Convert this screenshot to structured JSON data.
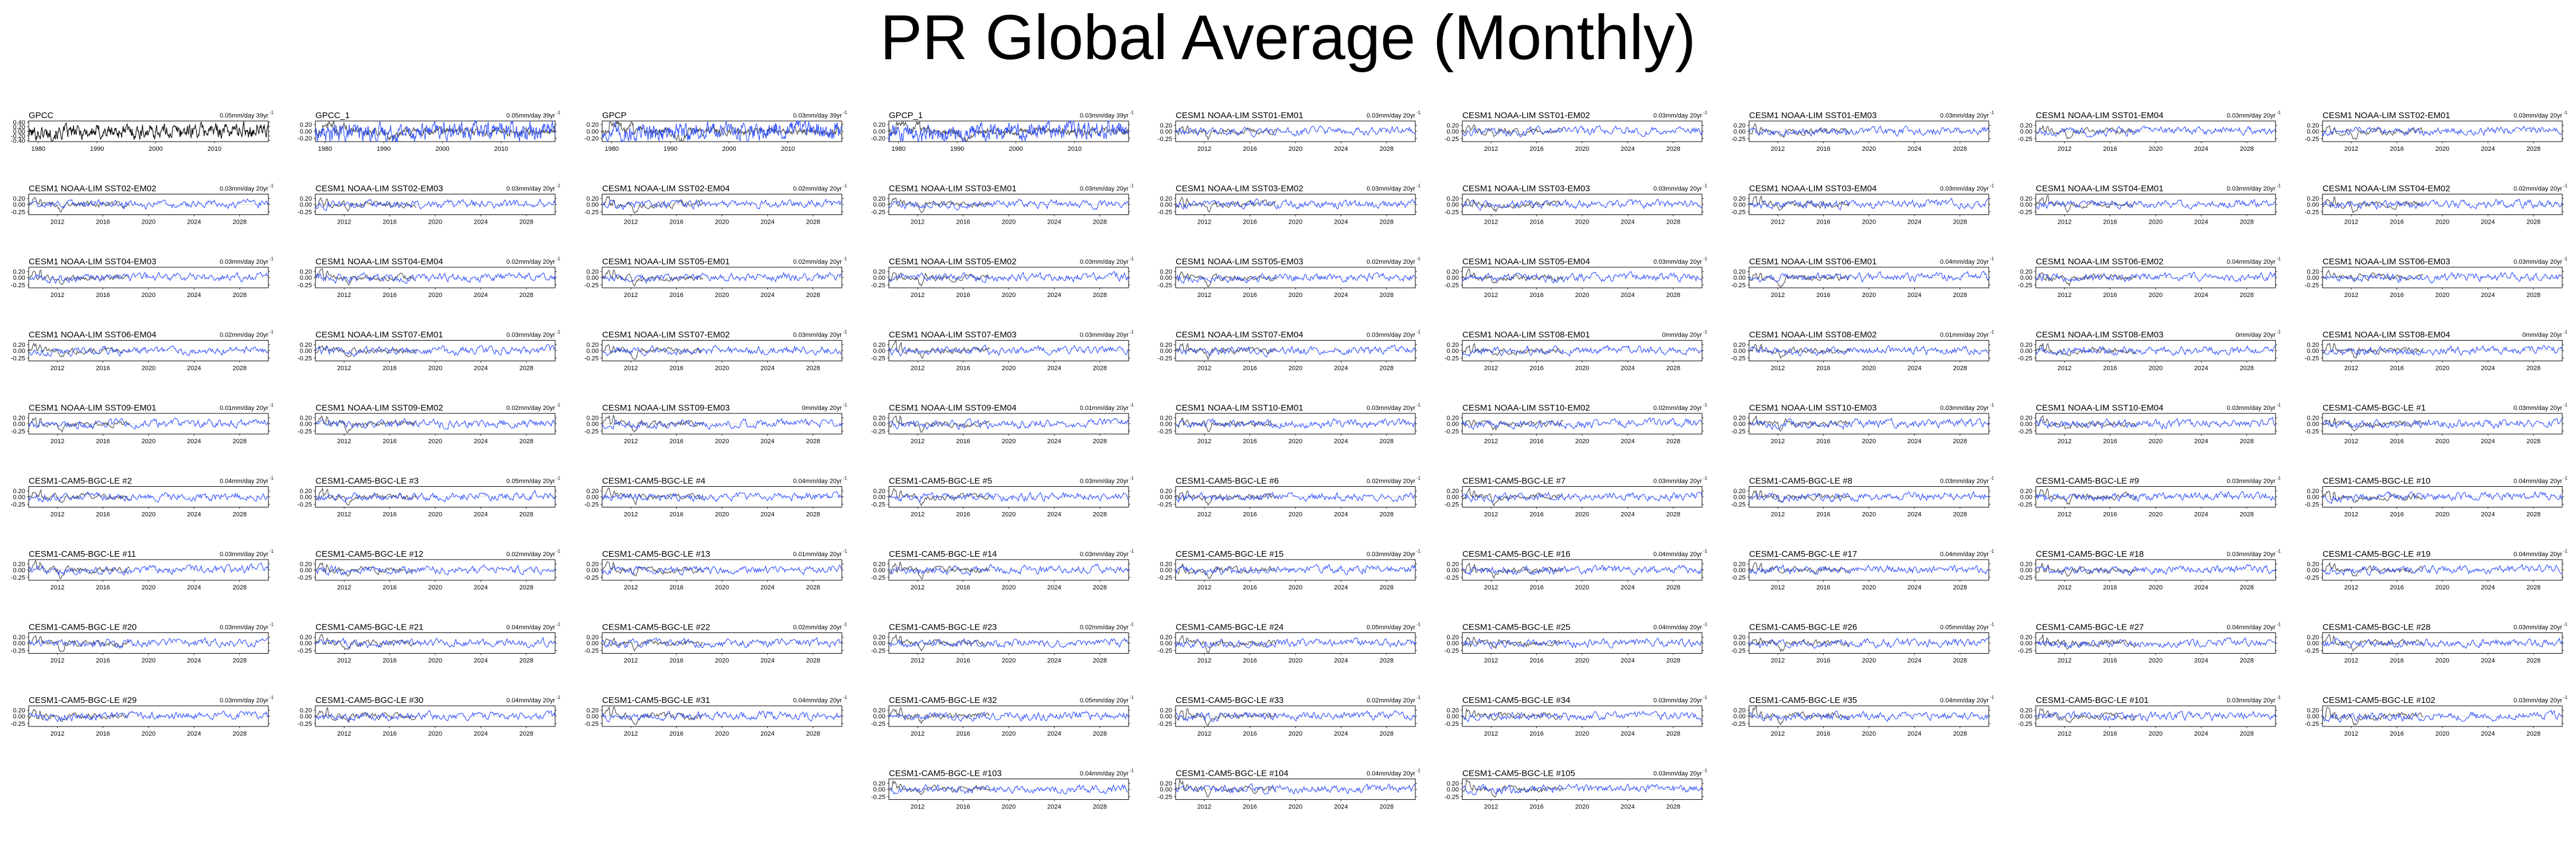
{
  "title": "PR Global Average (Monthly)",
  "chart_data": {
    "type": "line",
    "title": "PR Global Average (Monthly)",
    "colors": {
      "observed": "#000000",
      "model": "#3050ff",
      "truth_overlay": "#333333"
    },
    "obs_panels": [
      {
        "name": "GPCC",
        "trend": "0.05mm/day 39yr",
        "xticks": [
          "1980",
          "1990",
          "2000",
          "2010"
        ],
        "yticks": [
          "0.40",
          "0.20",
          "0.00",
          "-0.20",
          "-0.40"
        ],
        "ylim": [
          -0.45,
          0.45
        ],
        "line_color": "#000000",
        "overlay": false
      },
      {
        "name": "GPCC_1",
        "trend": "0.05mm/day 39yr",
        "xticks": [
          "1980",
          "1990",
          "2000",
          "2010"
        ],
        "yticks": [
          "0.20",
          "0.00",
          "-0.20"
        ],
        "ylim": [
          -0.3,
          0.3
        ],
        "line_color": "#3050ff",
        "overlay": true
      },
      {
        "name": "GPCP",
        "trend": "0.03mm/day 39yr",
        "xticks": [
          "1980",
          "1990",
          "2000",
          "2010"
        ],
        "yticks": [
          "0.20",
          "0.00",
          "-0.20"
        ],
        "ylim": [
          -0.3,
          0.3
        ],
        "line_color": "#3050ff",
        "overlay": true
      },
      {
        "name": "GPCP_1",
        "trend": "0.03mm/day 39yr",
        "xticks": [
          "1980",
          "1990",
          "2000",
          "2010"
        ],
        "yticks": [
          "0.20",
          "0.00",
          "-0.20"
        ],
        "ylim": [
          -0.3,
          0.3
        ],
        "line_color": "#3050ff",
        "overlay": true
      }
    ],
    "model_xticks": [
      "2012",
      "2016",
      "2020",
      "2024",
      "2028"
    ],
    "model_yticks": [
      "0.20",
      "0.00",
      "-0.25"
    ],
    "model_ylim": [
      -0.35,
      0.35
    ],
    "panels": [
      {
        "name": "CESM1 NOAA-LIM SST01-EM01",
        "trend": "0.03mm/day 20yr"
      },
      {
        "name": "CESM1 NOAA-LIM SST01-EM02",
        "trend": "0.03mm/day 20yr"
      },
      {
        "name": "CESM1 NOAA-LIM SST01-EM03",
        "trend": "0.03mm/day 20yr"
      },
      {
        "name": "CESM1 NOAA-LIM SST01-EM04",
        "trend": "0.03mm/day 20yr"
      },
      {
        "name": "CESM1 NOAA-LIM SST02-EM01",
        "trend": "0.03mm/day 20yr"
      },
      {
        "name": "CESM1 NOAA-LIM SST02-EM02",
        "trend": "0.03mm/day 20yr"
      },
      {
        "name": "CESM1 NOAA-LIM SST02-EM03",
        "trend": "0.03mm/day 20yr"
      },
      {
        "name": "CESM1 NOAA-LIM SST02-EM04",
        "trend": "0.02mm/day 20yr"
      },
      {
        "name": "CESM1 NOAA-LIM SST03-EM01",
        "trend": "0.03mm/day 20yr"
      },
      {
        "name": "CESM1 NOAA-LIM SST03-EM02",
        "trend": "0.03mm/day 20yr"
      },
      {
        "name": "CESM1 NOAA-LIM SST03-EM03",
        "trend": "0.03mm/day 20yr"
      },
      {
        "name": "CESM1 NOAA-LIM SST03-EM04",
        "trend": "0.03mm/day 20yr"
      },
      {
        "name": "CESM1 NOAA-LIM SST04-EM01",
        "trend": "0.03mm/day 20yr"
      },
      {
        "name": "CESM1 NOAA-LIM SST04-EM02",
        "trend": "0.02mm/day 20yr"
      },
      {
        "name": "CESM1 NOAA-LIM SST04-EM03",
        "trend": "0.03mm/day 20yr"
      },
      {
        "name": "CESM1 NOAA-LIM SST04-EM04",
        "trend": "0.02mm/day 20yr"
      },
      {
        "name": "CESM1 NOAA-LIM SST05-EM01",
        "trend": "0.02mm/day 20yr"
      },
      {
        "name": "CESM1 NOAA-LIM SST05-EM02",
        "trend": "0.03mm/day 20yr"
      },
      {
        "name": "CESM1 NOAA-LIM SST05-EM03",
        "trend": "0.02mm/day 20yr"
      },
      {
        "name": "CESM1 NOAA-LIM SST05-EM04",
        "trend": "0.03mm/day 20yr"
      },
      {
        "name": "CESM1 NOAA-LIM SST06-EM01",
        "trend": "0.04mm/day 20yr"
      },
      {
        "name": "CESM1 NOAA-LIM SST06-EM02",
        "trend": "0.04mm/day 20yr"
      },
      {
        "name": "CESM1 NOAA-LIM SST06-EM03",
        "trend": "0.03mm/day 20yr"
      },
      {
        "name": "CESM1 NOAA-LIM SST06-EM04",
        "trend": "0.02mm/day 20yr"
      },
      {
        "name": "CESM1 NOAA-LIM SST07-EM01",
        "trend": "0.03mm/day 20yr"
      },
      {
        "name": "CESM1 NOAA-LIM SST07-EM02",
        "trend": "0.03mm/day 20yr"
      },
      {
        "name": "CESM1 NOAA-LIM SST07-EM03",
        "trend": "0.03mm/day 20yr"
      },
      {
        "name": "CESM1 NOAA-LIM SST07-EM04",
        "trend": "0.03mm/day 20yr"
      },
      {
        "name": "CESM1 NOAA-LIM SST08-EM01",
        "trend": "0mm/day 20yr"
      },
      {
        "name": "CESM1 NOAA-LIM SST08-EM02",
        "trend": "0.01mm/day 20yr"
      },
      {
        "name": "CESM1 NOAA-LIM SST08-EM03",
        "trend": "0mm/day 20yr"
      },
      {
        "name": "CESM1 NOAA-LIM SST08-EM04",
        "trend": "0mm/day 20yr"
      },
      {
        "name": "CESM1 NOAA-LIM SST09-EM01",
        "trend": "0.01mm/day 20yr"
      },
      {
        "name": "CESM1 NOAA-LIM SST09-EM02",
        "trend": "0.02mm/day 20yr"
      },
      {
        "name": "CESM1 NOAA-LIM SST09-EM03",
        "trend": "0mm/day 20yr"
      },
      {
        "name": "CESM1 NOAA-LIM SST09-EM04",
        "trend": "0.01mm/day 20yr"
      },
      {
        "name": "CESM1 NOAA-LIM SST10-EM01",
        "trend": "0.03mm/day 20yr"
      },
      {
        "name": "CESM1 NOAA-LIM SST10-EM02",
        "trend": "0.02mm/day 20yr"
      },
      {
        "name": "CESM1 NOAA-LIM SST10-EM03",
        "trend": "0.03mm/day 20yr"
      },
      {
        "name": "CESM1 NOAA-LIM SST10-EM04",
        "trend": "0.03mm/day 20yr"
      },
      {
        "name": "CESM1-CAM5-BGC-LE #1",
        "trend": "0.03mm/day 20yr"
      },
      {
        "name": "CESM1-CAM5-BGC-LE #2",
        "trend": "0.04mm/day 20yr"
      },
      {
        "name": "CESM1-CAM5-BGC-LE #3",
        "trend": "0.05mm/day 20yr"
      },
      {
        "name": "CESM1-CAM5-BGC-LE #4",
        "trend": "0.04mm/day 20yr"
      },
      {
        "name": "CESM1-CAM5-BGC-LE #5",
        "trend": "0.03mm/day 20yr"
      },
      {
        "name": "CESM1-CAM5-BGC-LE #6",
        "trend": "0.02mm/day 20yr"
      },
      {
        "name": "CESM1-CAM5-BGC-LE #7",
        "trend": "0.03mm/day 20yr"
      },
      {
        "name": "CESM1-CAM5-BGC-LE #8",
        "trend": "0.03mm/day 20yr"
      },
      {
        "name": "CESM1-CAM5-BGC-LE #9",
        "trend": "0.03mm/day 20yr"
      },
      {
        "name": "CESM1-CAM5-BGC-LE #10",
        "trend": "0.04mm/day 20yr"
      },
      {
        "name": "CESM1-CAM5-BGC-LE #11",
        "trend": "0.03mm/day 20yr"
      },
      {
        "name": "CESM1-CAM5-BGC-LE #12",
        "trend": "0.02mm/day 20yr"
      },
      {
        "name": "CESM1-CAM5-BGC-LE #13",
        "trend": "0.01mm/day 20yr"
      },
      {
        "name": "CESM1-CAM5-BGC-LE #14",
        "trend": "0.03mm/day 20yr"
      },
      {
        "name": "CESM1-CAM5-BGC-LE #15",
        "trend": "0.03mm/day 20yr"
      },
      {
        "name": "CESM1-CAM5-BGC-LE #16",
        "trend": "0.04mm/day 20yr"
      },
      {
        "name": "CESM1-CAM5-BGC-LE #17",
        "trend": "0.04mm/day 20yr"
      },
      {
        "name": "CESM1-CAM5-BGC-LE #18",
        "trend": "0.03mm/day 20yr"
      },
      {
        "name": "CESM1-CAM5-BGC-LE #19",
        "trend": "0.04mm/day 20yr"
      },
      {
        "name": "CESM1-CAM5-BGC-LE #20",
        "trend": "0.03mm/day 20yr"
      },
      {
        "name": "CESM1-CAM5-BGC-LE #21",
        "trend": "0.04mm/day 20yr"
      },
      {
        "name": "CESM1-CAM5-BGC-LE #22",
        "trend": "0.02mm/day 20yr"
      },
      {
        "name": "CESM1-CAM5-BGC-LE #23",
        "trend": "0.02mm/day 20yr"
      },
      {
        "name": "CESM1-CAM5-BGC-LE #24",
        "trend": "0.05mm/day 20yr"
      },
      {
        "name": "CESM1-CAM5-BGC-LE #25",
        "trend": "0.04mm/day 20yr"
      },
      {
        "name": "CESM1-CAM5-BGC-LE #26",
        "trend": "0.05mm/day 20yr"
      },
      {
        "name": "CESM1-CAM5-BGC-LE #27",
        "trend": "0.04mm/day 20yr"
      },
      {
        "name": "CESM1-CAM5-BGC-LE #28",
        "trend": "0.03mm/day 20yr"
      },
      {
        "name": "CESM1-CAM5-BGC-LE #29",
        "trend": "0.03mm/day 20yr"
      },
      {
        "name": "CESM1-CAM5-BGC-LE #30",
        "trend": "0.04mm/day 20yr"
      },
      {
        "name": "CESM1-CAM5-BGC-LE #31",
        "trend": "0.04mm/day 20yr"
      },
      {
        "name": "CESM1-CAM5-BGC-LE #32",
        "trend": "0.05mm/day 20yr"
      },
      {
        "name": "CESM1-CAM5-BGC-LE #33",
        "trend": "0.02mm/day 20yr"
      },
      {
        "name": "CESM1-CAM5-BGC-LE #34",
        "trend": "0.03mm/day 20yr"
      },
      {
        "name": "CESM1-CAM5-BGC-LE #35",
        "trend": "0.04mm/day 20yr"
      },
      {
        "name": "CESM1-CAM5-BGC-LE #101",
        "trend": "0.03mm/day 20yr"
      },
      {
        "name": "CESM1-CAM5-BGC-LE #102",
        "trend": "0.03mm/day 20yr"
      },
      {
        "name": "CESM1-CAM5-BGC-LE #103",
        "trend": "0.04mm/day 20yr"
      },
      {
        "name": "CESM1-CAM5-BGC-LE #104",
        "trend": "0.04mm/day 20yr"
      },
      {
        "name": "CESM1-CAM5-BGC-LE #105",
        "trend": "0.03mm/day 20yr"
      }
    ]
  }
}
